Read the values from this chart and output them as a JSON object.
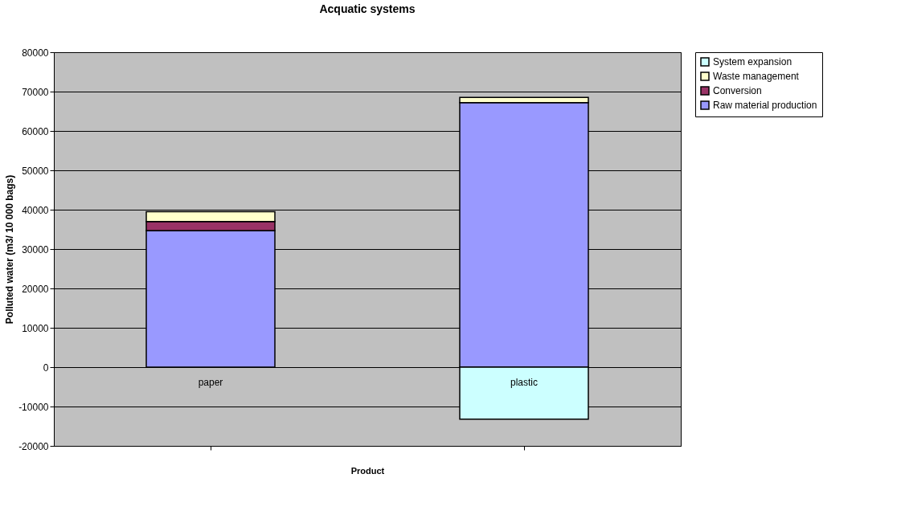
{
  "chart_data": {
    "type": "bar",
    "title": "Acquatic systems",
    "xlabel": "Product",
    "ylabel": "Polluted water (m3/ 10 000 bags)",
    "categories": [
      "paper",
      "plastic"
    ],
    "stacked": true,
    "series": [
      {
        "name": "Raw material production",
        "color": "#9999ff",
        "values": [
          34700,
          67200
        ]
      },
      {
        "name": "Conversion",
        "color": "#993366",
        "values": [
          2300,
          0
        ]
      },
      {
        "name": "Waste management",
        "color": "#ffffcc",
        "values": [
          2500,
          1300
        ]
      },
      {
        "name": "System expansion",
        "color": "#ccffff",
        "values": [
          0,
          -13200
        ]
      }
    ],
    "ylim": [
      -20000,
      80000
    ],
    "yticks": [
      -20000,
      -10000,
      0,
      10000,
      20000,
      30000,
      40000,
      50000,
      60000,
      70000,
      80000
    ],
    "grid": "y",
    "legend": "right"
  }
}
